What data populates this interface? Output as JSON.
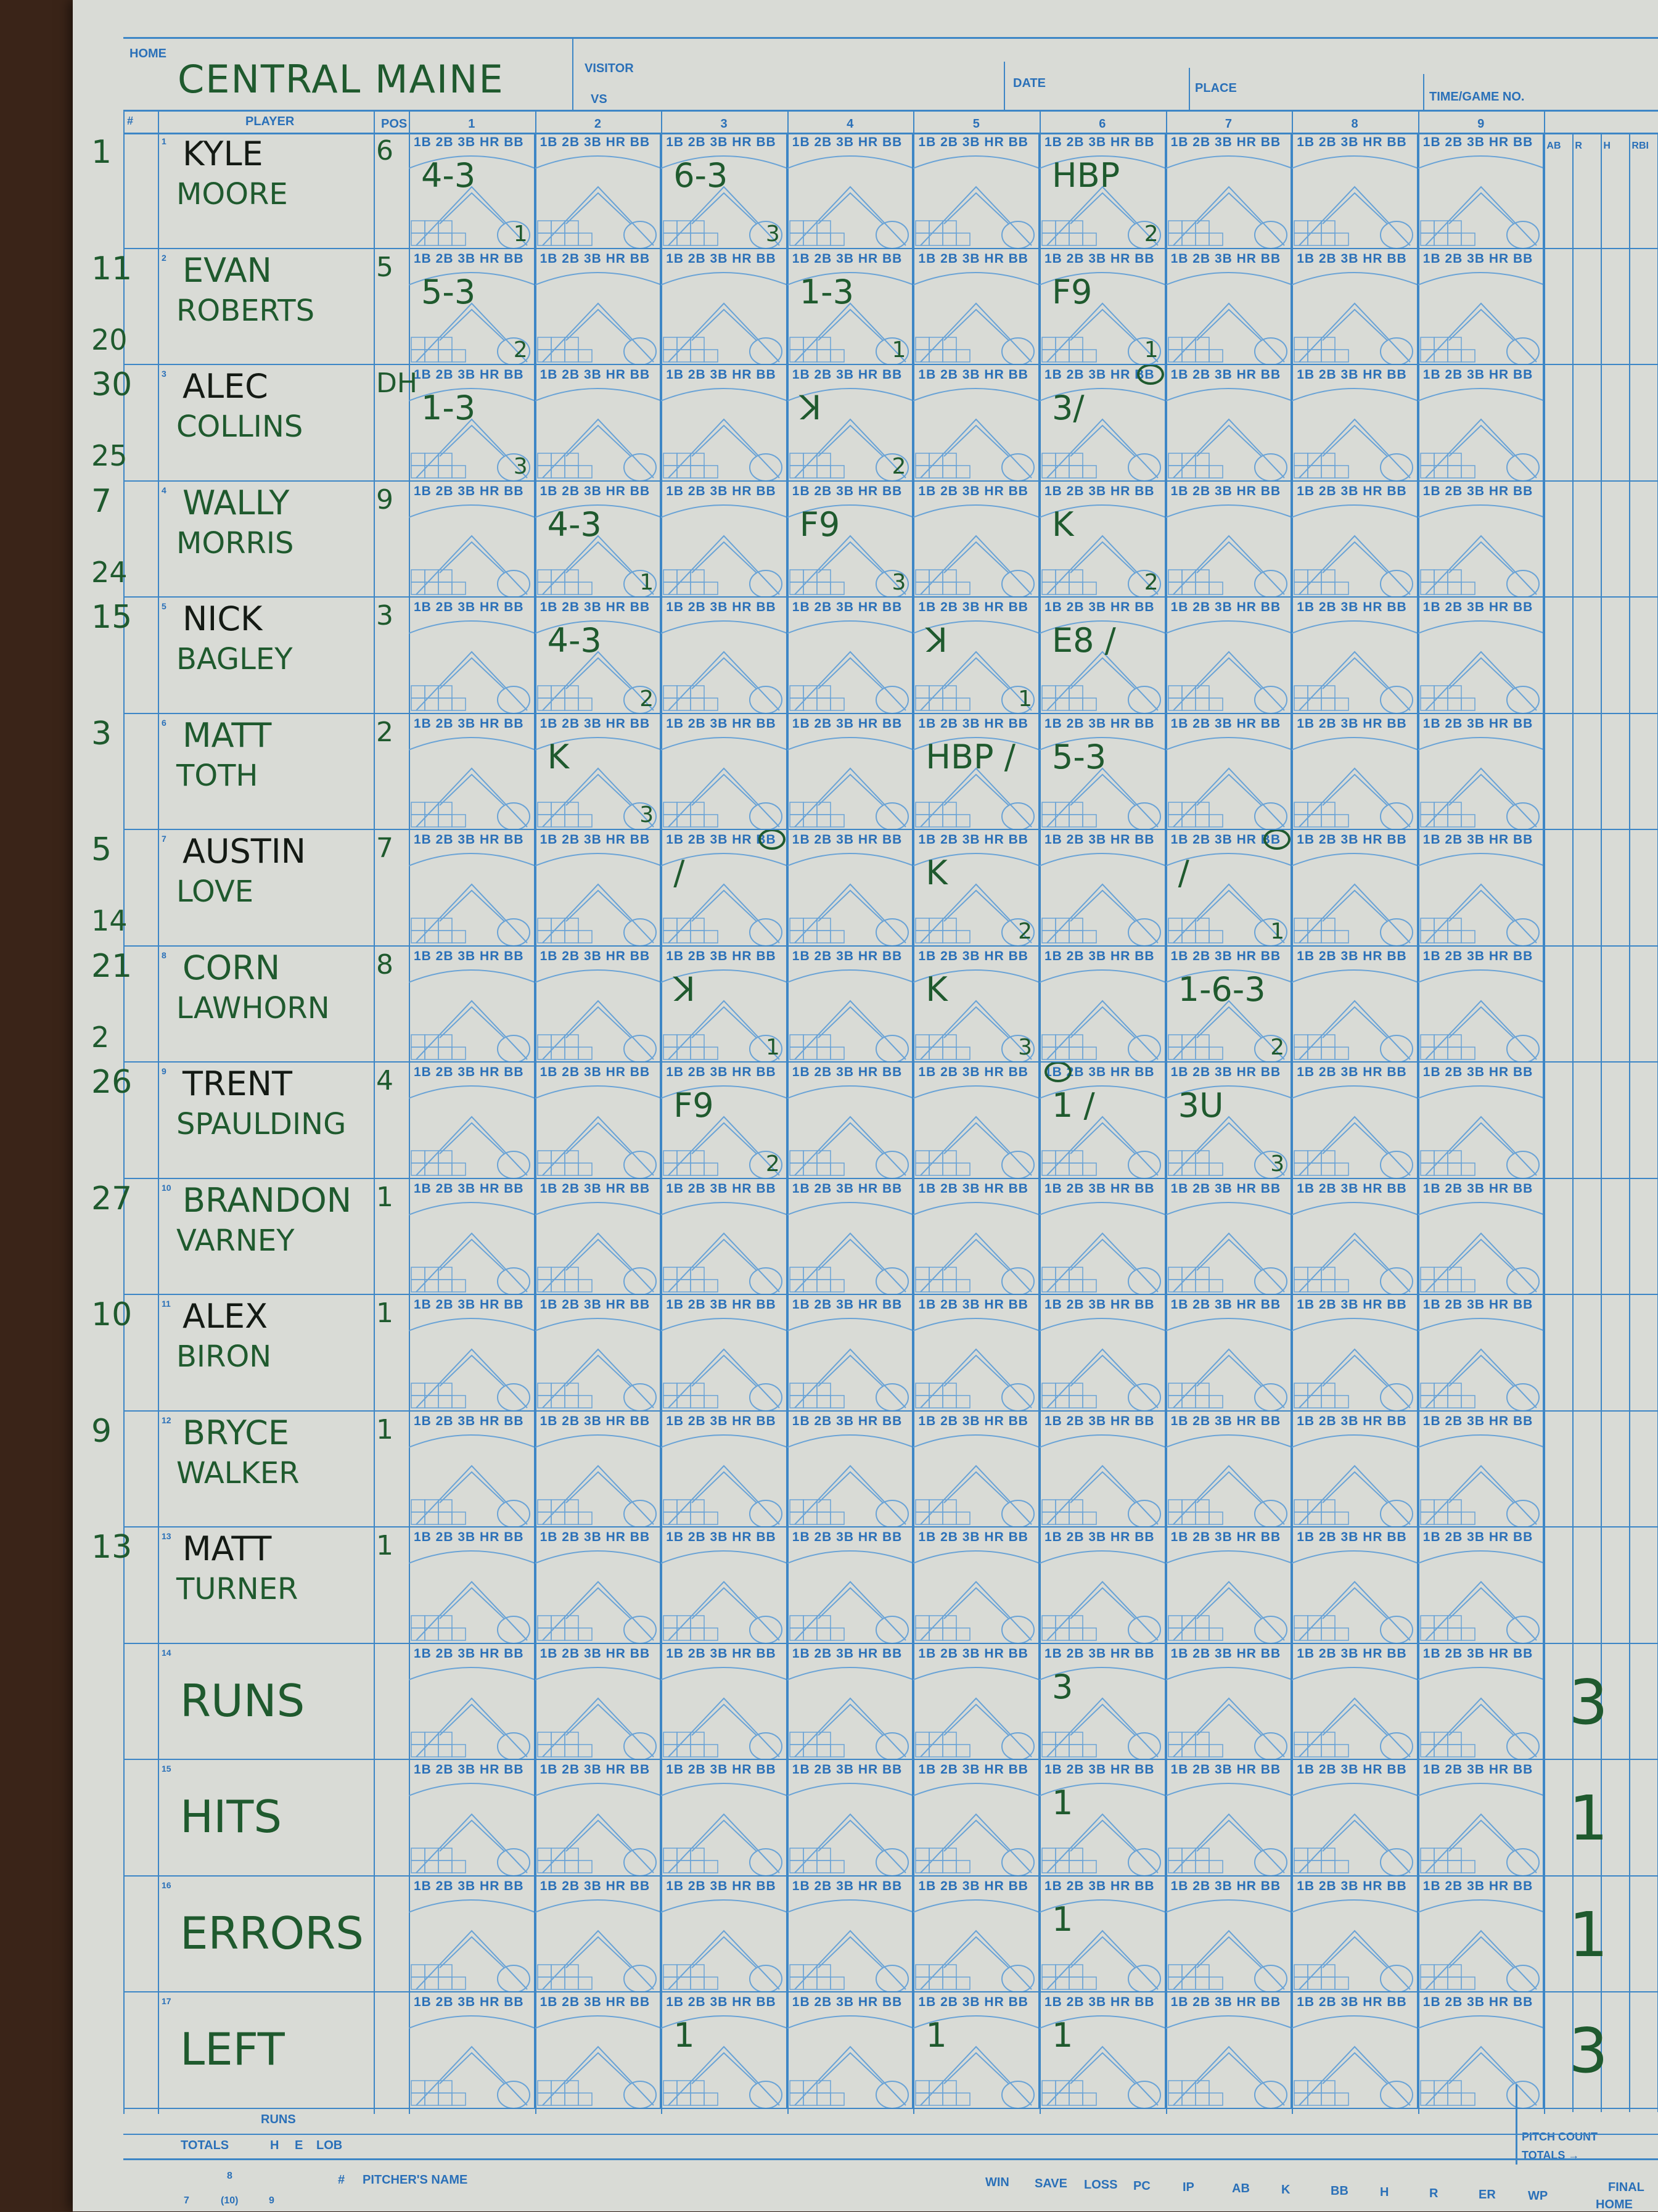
{
  "header": {
    "home_label": "HOME",
    "home_team": "CENTRAL MAINE",
    "visitor_label": "VISITOR",
    "vs_label": "VS",
    "visitor_team": "",
    "date_label": "DATE",
    "place_label": "PLACE",
    "time_label": "TIME/GAME NO."
  },
  "columns": {
    "num": "#",
    "player": "PLAYER",
    "pos": "POS",
    "innings": [
      "1",
      "2",
      "3",
      "4",
      "5",
      "6",
      "7",
      "8",
      "9"
    ],
    "stats": [
      "AB",
      "R",
      "H",
      "RBI"
    ]
  },
  "cell_label": "1B 2B 3B HR BB",
  "rows": [
    {
      "order": "1",
      "num": "1",
      "sub": "",
      "first": "KYLE",
      "last": "MOORE",
      "pos": "6",
      "plays": {
        "1": {
          "mark": "4-3",
          "out": "1"
        },
        "3": {
          "mark": "6-3",
          "out": "3"
        },
        "6": {
          "mark": "HBP",
          "out": "2"
        }
      }
    },
    {
      "order": "2",
      "num": "11",
      "sub": "20",
      "first": "EVAN",
      "last": "ROBERTS",
      "pos": "5",
      "plays": {
        "1": {
          "mark": "5-3",
          "out": "2"
        },
        "4": {
          "mark": "1-3",
          "out": "1"
        },
        "6": {
          "mark": "F9",
          "out": "1"
        }
      }
    },
    {
      "order": "3",
      "num": "30",
      "sub": "25",
      "first": "ALEC",
      "last": "COLLINS",
      "pos": "DH",
      "plays": {
        "1": {
          "mark": "1-3",
          "out": "3"
        },
        "4": {
          "mark": "ꓘ",
          "out": "2"
        },
        "6": {
          "mark": "3/",
          "out": "",
          "circle": "BB"
        }
      }
    },
    {
      "order": "4",
      "num": "7",
      "sub": "24",
      "first": "WALLY",
      "last": "MORRIS",
      "pos": "9",
      "plays": {
        "2": {
          "mark": "4-3",
          "out": "1"
        },
        "4": {
          "mark": "F9",
          "out": "3"
        },
        "6": {
          "mark": "K",
          "out": "2"
        }
      }
    },
    {
      "order": "5",
      "num": "15",
      "sub": "",
      "first": "NICK",
      "last": "BAGLEY",
      "pos": "3",
      "plays": {
        "2": {
          "mark": "4-3",
          "out": "2"
        },
        "5": {
          "mark": "ꓘ",
          "out": "1"
        },
        "6": {
          "mark": "E8 /",
          "out": ""
        }
      }
    },
    {
      "order": "6",
      "num": "3",
      "sub": "",
      "first": "MATT",
      "last": "TOTH",
      "pos": "2",
      "plays": {
        "2": {
          "mark": "K",
          "out": "3"
        },
        "5": {
          "mark": "HBP /",
          "out": ""
        },
        "6": {
          "mark": "5-3",
          "out": ""
        }
      }
    },
    {
      "order": "7",
      "num": "5",
      "sub": "14",
      "first": "AUSTIN",
      "last": "LOVE",
      "pos": "7",
      "plays": {
        "3": {
          "mark": "/",
          "out": "",
          "circle": "BB"
        },
        "5": {
          "mark": "K",
          "out": "2"
        },
        "7": {
          "mark": "/",
          "out": "1",
          "circle": "BB"
        }
      }
    },
    {
      "order": "8",
      "num": "21",
      "sub": "2",
      "first": "CORN",
      "last": "LAWHORN",
      "pos": "8",
      "plays": {
        "3": {
          "mark": "ꓘ",
          "out": "1"
        },
        "5": {
          "mark": "K",
          "out": "3"
        },
        "7": {
          "mark": "1-6-3",
          "out": "2"
        }
      }
    },
    {
      "order": "9",
      "num": "26",
      "sub": "",
      "first": "TRENT",
      "last": "SPAULDING",
      "pos": "4",
      "plays": {
        "3": {
          "mark": "F9",
          "out": "2"
        },
        "6": {
          "mark": "1 /",
          "out": "",
          "circle": "1B"
        },
        "7": {
          "mark": "3U",
          "out": "3"
        }
      }
    },
    {
      "order": "10",
      "num": "27",
      "sub": "",
      "first": "BRANDON",
      "last": "VARNEY",
      "pos": "1",
      "plays": {}
    },
    {
      "order": "11",
      "num": "10",
      "sub": "",
      "first": "ALEX",
      "last": "BIRON",
      "pos": "1",
      "plays": {}
    },
    {
      "order": "12",
      "num": "9",
      "sub": "",
      "first": "BRYCE",
      "last": "WALKER",
      "pos": "1",
      "plays": {}
    },
    {
      "order": "13",
      "num": "13",
      "sub": "",
      "first": "MATT",
      "last": "TURNER",
      "pos": "1",
      "plays": {}
    },
    {
      "order": "14",
      "num": "",
      "sub": "",
      "first": "RUNS",
      "last": "",
      "pos": "",
      "plays": {
        "6": {
          "mark": "3",
          "out": ""
        }
      },
      "total": "3"
    },
    {
      "order": "15",
      "num": "",
      "sub": "",
      "first": "HITS",
      "last": "",
      "pos": "",
      "plays": {
        "6": {
          "mark": "1",
          "out": ""
        }
      },
      "total": "1"
    },
    {
      "order": "16",
      "num": "",
      "sub": "",
      "first": "ERRORS",
      "last": "",
      "pos": "",
      "plays": {
        "6": {
          "mark": "1",
          "out": ""
        }
      },
      "total": "1"
    },
    {
      "order": "17",
      "num": "",
      "sub": "",
      "first": "LEFT",
      "last": "",
      "pos": "",
      "plays": {
        "3": {
          "mark": "1",
          "out": ""
        },
        "5": {
          "mark": "1",
          "out": ""
        },
        "6": {
          "mark": "1",
          "out": ""
        }
      },
      "total": "3"
    }
  ],
  "footer": {
    "runs": "RUNS",
    "totals": "TOTALS",
    "h": "H",
    "e": "E",
    "lob": "LOB",
    "pitch_count": "PITCH COUNT",
    "totals_arrow": "TOTALS →",
    "field": [
      "8",
      "7",
      "(10)",
      "9"
    ],
    "pitcher_num": "#",
    "pitcher_name": "PITCHER'S NAME",
    "pitcher_cols": [
      "WIN",
      "SAVE",
      "LOSS",
      "PC",
      "IP",
      "AB",
      "K",
      "BB",
      "H",
      "R",
      "ER",
      "WP"
    ],
    "final": "FINAL",
    "home": "HOME"
  },
  "colors": {
    "ink_grid": "#3d86c6",
    "ink_print": "#2a70b8",
    "pen": "#1f5a2e",
    "paper": "#d9dbd6"
  }
}
